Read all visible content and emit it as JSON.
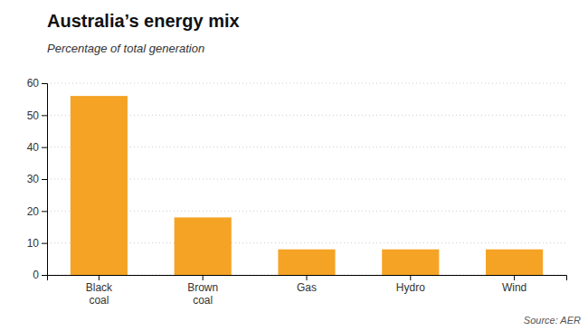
{
  "chart_data": {
    "type": "bar",
    "title": "Australia’s energy mix",
    "subtitle": "Percentage of total generation",
    "source": "Source: AER",
    "categories": [
      "Black\ncoal",
      "Brown\ncoal",
      "Gas",
      "Hydro",
      "Wind"
    ],
    "values": [
      56,
      18,
      8,
      8,
      8
    ],
    "color": "#F5A325",
    "ylim": [
      0,
      60
    ],
    "yticks": [
      0,
      10,
      20,
      30,
      40,
      50,
      60
    ],
    "grid": true
  }
}
